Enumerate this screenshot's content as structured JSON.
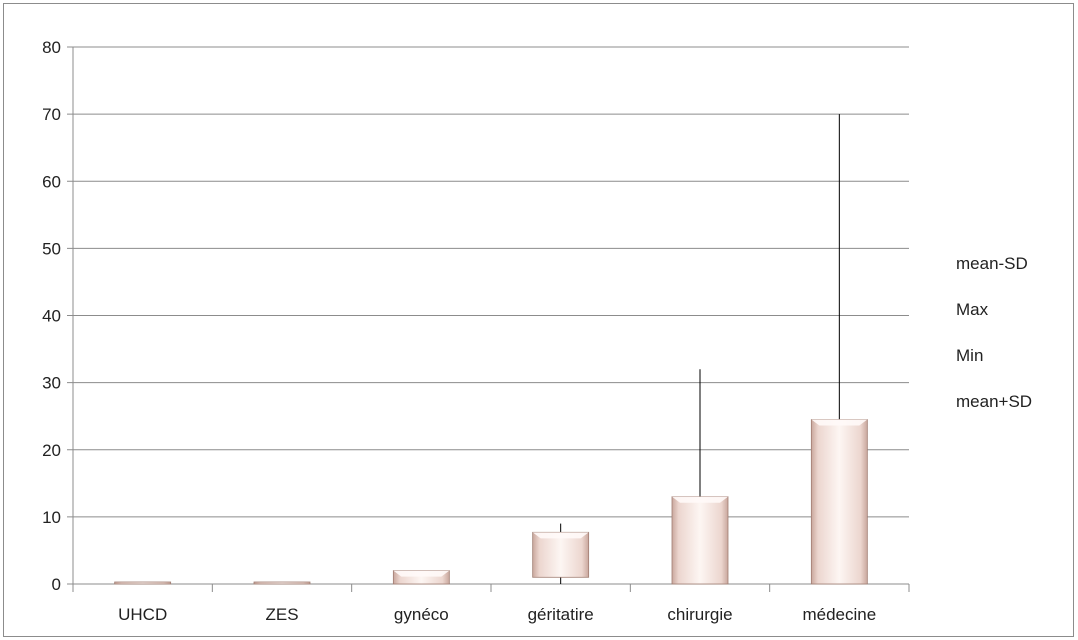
{
  "chart_data": {
    "type": "bar",
    "title": "",
    "xlabel": "",
    "ylabel": "",
    "categories": [
      "UHCD",
      "ZES",
      "gynéco",
      "géritatire",
      "chirurgie",
      "médecine"
    ],
    "ylim": [
      0,
      80
    ],
    "yticks": [
      0,
      10,
      20,
      30,
      40,
      50,
      60,
      70,
      80
    ],
    "grid": true,
    "legend_position": "right",
    "series": [
      {
        "name": "mean-SD",
        "values": [
          0,
          0,
          0,
          1,
          0,
          0
        ]
      },
      {
        "name": "Max",
        "values": [
          0,
          0,
          2,
          9,
          32,
          70
        ]
      },
      {
        "name": "Min",
        "values": [
          0,
          0,
          0,
          0,
          0,
          0
        ]
      },
      {
        "name": "mean+SD",
        "values": [
          0,
          0,
          2,
          7.7,
          13,
          24.5
        ]
      }
    ],
    "colors": {
      "bar_fill_light": "#fdf5f2",
      "bar_fill_mid": "#f0d9d2",
      "bar_edge": "#a07d72",
      "gridline": "#8c8c8c",
      "whisker": "#000000",
      "axis": "#8c8c8c"
    }
  }
}
